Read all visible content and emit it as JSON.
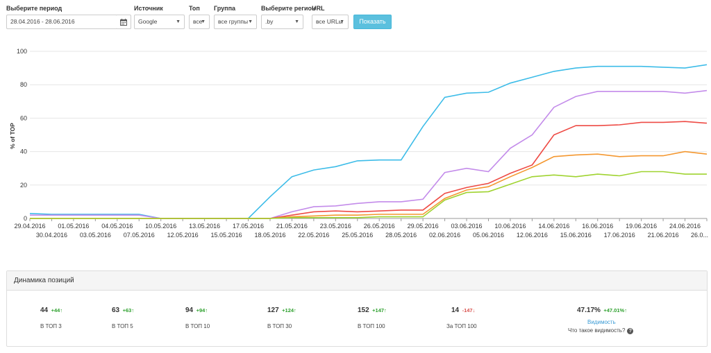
{
  "filters": {
    "period": {
      "label": "Выберите период",
      "value": "28.04.2016 - 28.06.2016"
    },
    "source": {
      "label": "Источник",
      "value": "Google"
    },
    "top": {
      "label": "Топ",
      "value": "все"
    },
    "group": {
      "label": "Группа",
      "value": "все группы"
    },
    "region": {
      "label": "Выберите регион",
      "value": ".by"
    },
    "url": {
      "label": "URL",
      "value": "все URLы"
    },
    "show_button": "Показать",
    "calendar_icon": "calendar-icon",
    "dropdown_icon": "chevron-down-icon"
  },
  "chart_data": {
    "type": "line",
    "ylabel": "% of TOP",
    "ylim": [
      0,
      100
    ],
    "yticks": [
      "0",
      "20",
      "40",
      "60",
      "80",
      "100"
    ],
    "grid": true,
    "x": [
      "29.04.2016",
      "30.04.2016",
      "01.05.2016",
      "03.05.2016",
      "04.05.2016",
      "07.05.2016",
      "10.05.2016",
      "12.05.2016",
      "13.05.2016",
      "15.05.2016",
      "17.05.2016",
      "18.05.2016",
      "21.05.2016",
      "22.05.2016",
      "23.05.2016",
      "25.05.2016",
      "26.05.2016",
      "28.05.2016",
      "29.05.2016",
      "02.06.2016",
      "03.06.2016",
      "05.06.2016",
      "10.06.2016",
      "12.06.2016",
      "14.06.2016",
      "15.06.2016",
      "16.06.2016",
      "17.06.2016",
      "19.06.2016",
      "21.06.2016",
      "24.06.2016",
      "26.0..."
    ],
    "series": [
      {
        "color": "#3cbce8",
        "values": [
          3,
          2.5,
          2.5,
          2.5,
          2.5,
          2.5,
          0,
          0,
          0,
          0,
          0,
          13,
          25,
          29,
          31,
          34.5,
          35,
          35,
          55,
          72.5,
          75,
          75.5,
          81,
          84.5,
          88,
          90,
          91,
          91,
          91,
          90.5,
          90,
          92
        ]
      },
      {
        "color": "#c38bea",
        "values": [
          2,
          2,
          2,
          2,
          2,
          2,
          0,
          0,
          0,
          0,
          0,
          0,
          4,
          7,
          7.5,
          9,
          10,
          10,
          11.5,
          27.5,
          30,
          28,
          42,
          50,
          66.5,
          73,
          76,
          76,
          76,
          76,
          75,
          76.5
        ]
      },
      {
        "color": "#ee4a44",
        "values": [
          0,
          0,
          0,
          0,
          0,
          0,
          0,
          0,
          0,
          0,
          0,
          0,
          2,
          4,
          4.5,
          4,
          4.5,
          5,
          5,
          15,
          18.5,
          21,
          27,
          32,
          50,
          55.5,
          55.5,
          56,
          57.5,
          57.5,
          58,
          57
        ]
      },
      {
        "color": "#f4972f",
        "values": [
          0,
          0,
          0,
          0,
          0,
          0,
          0,
          0,
          0,
          0,
          0,
          0,
          1,
          1.5,
          2,
          2,
          2.5,
          2.5,
          2.5,
          12,
          17,
          19,
          25,
          30.5,
          37,
          38,
          38.5,
          37,
          37.5,
          37.5,
          40,
          38.5
        ]
      },
      {
        "color": "#9fd32f",
        "values": [
          0,
          0,
          0,
          0,
          0,
          0,
          0,
          0,
          0,
          0,
          0,
          0,
          0.5,
          0.5,
          0.5,
          0.5,
          1,
          1,
          1,
          11,
          15.5,
          16,
          20.5,
          25,
          26,
          25,
          26.5,
          25.5,
          28,
          28,
          26.5,
          26.5
        ]
      }
    ]
  },
  "dynamics": {
    "title": "Динамика позиций",
    "stats": [
      {
        "value": "44",
        "delta": "+44",
        "arrow": "up",
        "label": "В ТОП 3"
      },
      {
        "value": "63",
        "delta": "+63",
        "arrow": "up",
        "label": "В ТОП 5"
      },
      {
        "value": "94",
        "delta": "+94",
        "arrow": "up",
        "label": "В ТОП 10"
      },
      {
        "value": "127",
        "delta": "+124",
        "arrow": "up",
        "label": "В ТОП 30"
      },
      {
        "value": "152",
        "delta": "+147",
        "arrow": "up",
        "label": "В ТОП 100"
      },
      {
        "value": "14",
        "delta": "-147",
        "arrow": "down",
        "label": "За ТОП 100"
      }
    ],
    "visibility": {
      "value": "47.17%",
      "delta": "+47.01%",
      "link": "Видимость",
      "question": "Что такое видимость?",
      "help_icon": "?"
    }
  }
}
